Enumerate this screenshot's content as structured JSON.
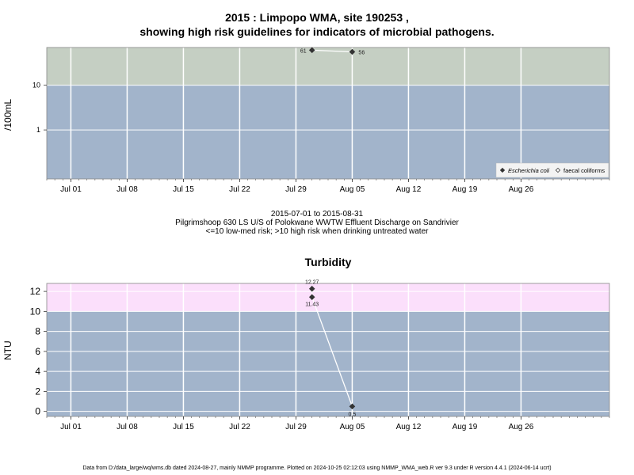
{
  "header": {
    "title_line1": "2015 : Limpopo WMA, site 190253 ,",
    "title_line2": "showing high risk guidelines for indicators of microbial pathogens."
  },
  "caption": {
    "line1": "2015-07-01 to 2015-08-31",
    "line2": "Pilgrimshoop 630 LS U/S of Polokwane WWTW Effluent Discharge on Sandrivier",
    "line3": "<=10 low-med risk; >10 high risk when drinking untreated water"
  },
  "footer": {
    "text": "Data from D:/data_large/wq/wms.db dated 2024-08-27, mainly NMMP programme. Plotted on 2024-10-25 02:12:03 using NMMP_WMA_web.R ver 9.3 under R version 4.4.1 (2024-06-14 ucrt)"
  },
  "colors": {
    "panel_low": "#a2b4cb",
    "panel_high_microbial": "#c5cfc3",
    "panel_high_turbidity": "#fbdffb",
    "grid": "#ffffff",
    "point": "#333333",
    "line": "#ffffff"
  },
  "chart_data": [
    {
      "type": "scatter",
      "title": "",
      "ylabel": "/100mL",
      "xlabel": "",
      "y_scale": "log",
      "y_ticks": [
        "1",
        "10"
      ],
      "y_tick_values": [
        1,
        10
      ],
      "ylim": [
        0.08,
        70
      ],
      "xlim": [
        "2015-06-28",
        "2015-09-06"
      ],
      "x_ticks": [
        "Jul 01",
        "Jul 08",
        "Jul 15",
        "Jul 22",
        "Jul 29",
        "Aug 05",
        "Aug 12",
        "Aug 19",
        "Aug 26"
      ],
      "x_tick_dates": [
        "2015-07-01",
        "2015-07-08",
        "2015-07-15",
        "2015-07-22",
        "2015-07-29",
        "2015-08-05",
        "2015-08-12",
        "2015-08-19",
        "2015-08-26"
      ],
      "threshold": 10,
      "grid": true,
      "legend_position": "bottom-right",
      "series": [
        {
          "name": "Escherichia coli",
          "marker": "filled-diamond",
          "points": [
            {
              "x": "2015-07-31",
              "y": 61,
              "label": "61"
            },
            {
              "x": "2015-08-05",
              "y": 56,
              "label": "56"
            }
          ]
        },
        {
          "name": "faecal coliforms",
          "marker": "open-diamond",
          "points": []
        }
      ]
    },
    {
      "type": "scatter",
      "title": "Turbidity",
      "ylabel": "NTU",
      "xlabel": "",
      "y_scale": "linear",
      "y_ticks": [
        "0",
        "2",
        "4",
        "6",
        "8",
        "10",
        "12"
      ],
      "y_tick_values": [
        0,
        2,
        4,
        6,
        8,
        10,
        12
      ],
      "ylim": [
        -0.5,
        12.8
      ],
      "xlim": [
        "2015-06-28",
        "2015-09-06"
      ],
      "x_ticks": [
        "Jul 01",
        "Jul 08",
        "Jul 15",
        "Jul 22",
        "Jul 29",
        "Aug 05",
        "Aug 12",
        "Aug 19",
        "Aug 26"
      ],
      "x_tick_dates": [
        "2015-07-01",
        "2015-07-08",
        "2015-07-15",
        "2015-07-22",
        "2015-07-29",
        "2015-08-05",
        "2015-08-12",
        "2015-08-19",
        "2015-08-26"
      ],
      "threshold": 10,
      "grid": true,
      "series": [
        {
          "name": "",
          "marker": "filled-diamond",
          "points": [
            {
              "x": "2015-07-31",
              "y": 12.27,
              "label": "12.27"
            },
            {
              "x": "2015-07-31",
              "y": 11.43,
              "label": "11.43"
            },
            {
              "x": "2015-08-05",
              "y": 0.5,
              "label": "0.5"
            }
          ]
        }
      ]
    }
  ]
}
